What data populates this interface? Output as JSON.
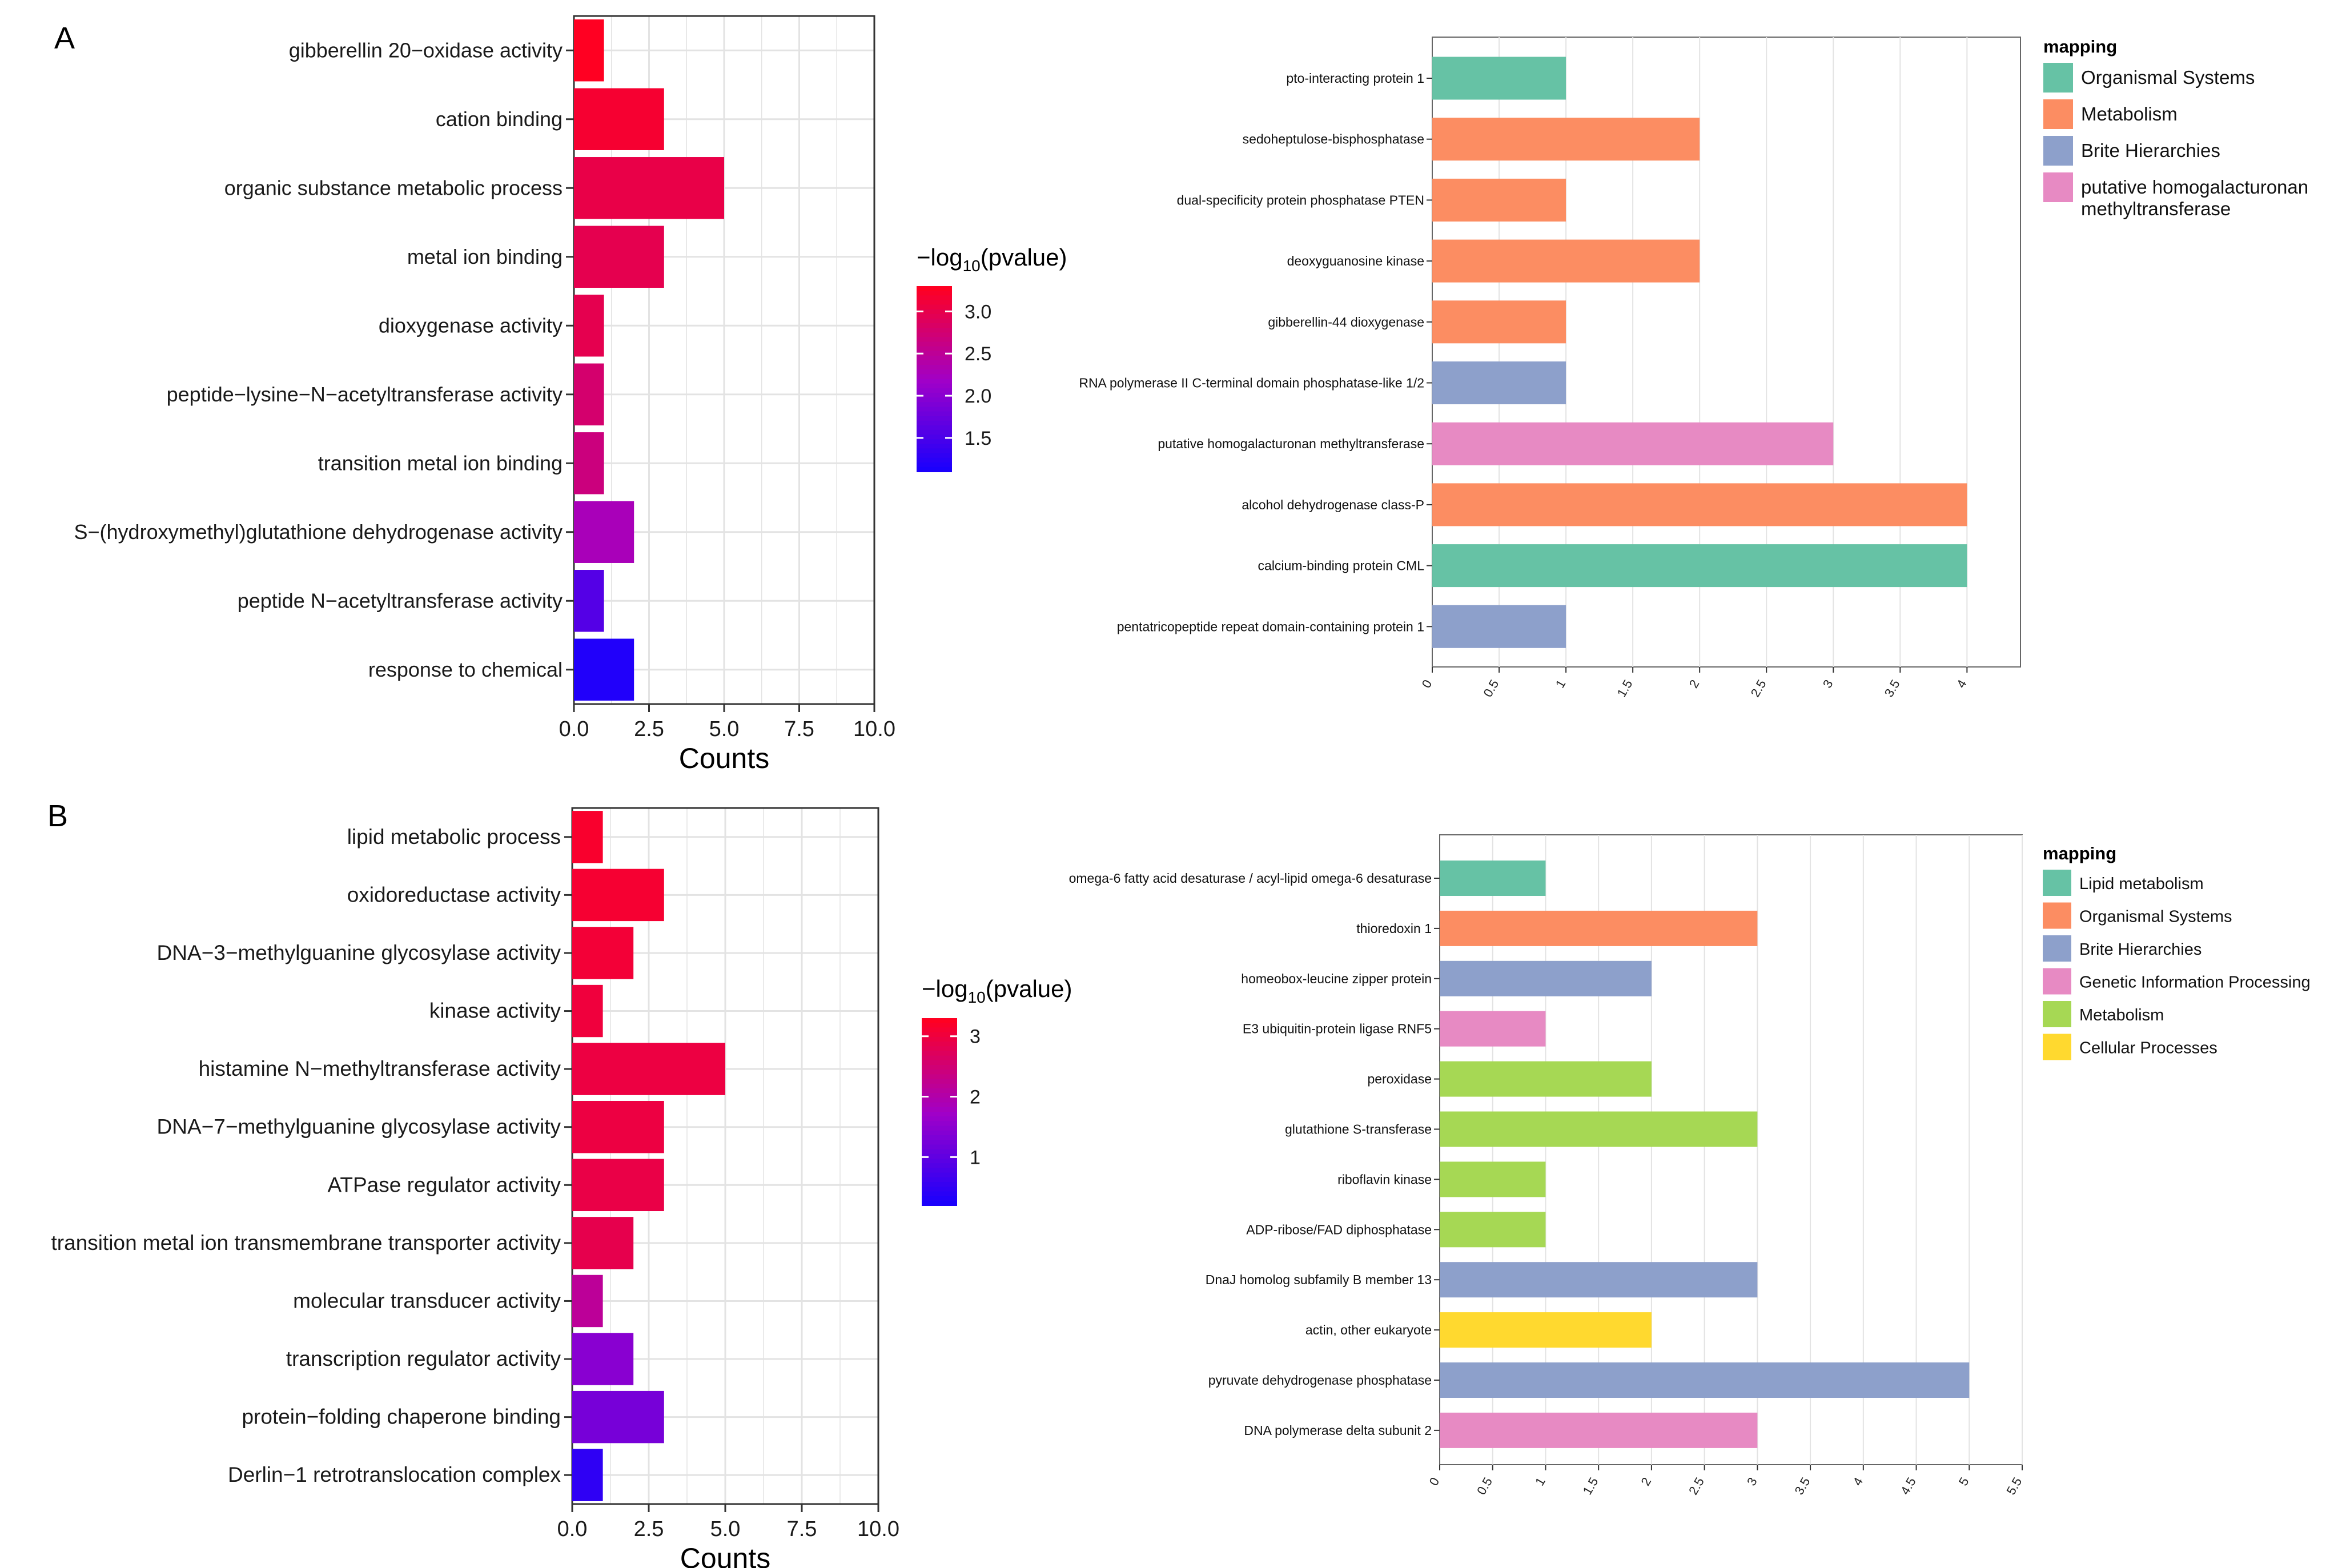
{
  "panels": {
    "a": "A",
    "b": "B"
  },
  "colors": {
    "low": "#1400ff",
    "mid": "#a000c8",
    "high": "#ff0022",
    "grid": "#e3e3e3",
    "frame": "#555555"
  },
  "chart_data": [
    {
      "id": "A-left",
      "type": "bar",
      "orientation": "horizontal",
      "title": "",
      "xlabel": "Counts",
      "ylabel": "",
      "xlim": [
        0,
        10
      ],
      "xticks": [
        0,
        2.5,
        5,
        7.5,
        10
      ],
      "xtick_labels": [
        "0.0",
        "2.5",
        "5.0",
        "7.5",
        "10.0"
      ],
      "categories": [
        "gibberellin 20−oxidase activity",
        "cation binding",
        "organic substance metabolic process",
        "metal ion binding",
        "dioxygenase activity",
        "peptide−lysine−N−acetyltransferase activity",
        "transition metal ion binding",
        "S−(hydroxymethyl)glutathione dehydrogenase activity",
        "peptide N−acetyltransferase activity",
        "response to chemical"
      ],
      "values": [
        1,
        3,
        5,
        3,
        1,
        1,
        1,
        2,
        1,
        2
      ],
      "neg_log10_pvalue": [
        3.3,
        3.2,
        3.05,
        3.0,
        3.0,
        2.8,
        2.7,
        2.3,
        1.6,
        1.2
      ],
      "legend": {
        "title_prefix": "−log",
        "title_sub": "10",
        "title_suffix": "(pvalue)",
        "range": [
          1.1,
          3.3
        ],
        "ticks": [
          3.0,
          2.5,
          2.0,
          1.5
        ],
        "tick_labels": [
          "3.0",
          "2.5",
          "2.0",
          "1.5"
        ]
      }
    },
    {
      "id": "A-right",
      "type": "bar",
      "orientation": "horizontal",
      "title": "",
      "xlabel": "",
      "ylabel": "",
      "xlim": [
        0,
        4.4
      ],
      "xticks": [
        0,
        0.5,
        1,
        1.5,
        2,
        2.5,
        3,
        3.5,
        4
      ],
      "xtick_labels": [
        "0",
        "0.5",
        "1",
        "1.5",
        "2",
        "2.5",
        "3",
        "3.5",
        "4"
      ],
      "categories": [
        "pto-interacting protein 1",
        "sedoheptulose-bisphosphatase",
        "dual-specificity protein phosphatase PTEN",
        "deoxyguanosine kinase",
        "gibberellin-44 dioxygenase",
        "RNA polymerase II C-terminal domain phosphatase-like 1/2",
        "putative homogalacturonan methyltransferase",
        "alcohol dehydrogenase class-P",
        "calcium-binding protein CML",
        "pentatricopeptide repeat domain-containing protein 1"
      ],
      "values": [
        1,
        2,
        1,
        2,
        1,
        1,
        3,
        4,
        4,
        1
      ],
      "groups": [
        0,
        1,
        1,
        1,
        1,
        2,
        3,
        1,
        0,
        2
      ],
      "legend": {
        "title": "mapping",
        "entries": [
          {
            "label": "Organismal Systems",
            "color": "#66c2a5"
          },
          {
            "label": "Metabolism",
            "color": "#fc8d62"
          },
          {
            "label": "Brite Hierarchies",
            "color": "#8da0cb"
          },
          {
            "label": "putative homogalacturonan",
            "label2": "methyltransferase",
            "color": "#e78ac3"
          }
        ]
      }
    },
    {
      "id": "B-left",
      "type": "bar",
      "orientation": "horizontal",
      "title": "",
      "xlabel": "Counts",
      "ylabel": "",
      "xlim": [
        0,
        10
      ],
      "xticks": [
        0,
        2.5,
        5,
        7.5,
        10
      ],
      "xtick_labels": [
        "0.0",
        "2.5",
        "5.0",
        "7.5",
        "10.0"
      ],
      "categories": [
        "lipid metabolic process",
        "oxidoreductase activity",
        "DNA−3−methylguanine glycosylase activity",
        "kinase activity",
        "histamine N−methyltransferase activity",
        "DNA−7−methylguanine glycosylase activity",
        "ATPase regulator activity",
        "transition metal ion transmembrane transporter activity",
        "molecular transducer activity",
        "transcription regulator activity",
        "protein−folding chaperone binding",
        "Derlin−1 retrotranslocation complex"
      ],
      "values": [
        1,
        3,
        2,
        1,
        5,
        3,
        3,
        2,
        1,
        2,
        3,
        1
      ],
      "neg_log10_pvalue": [
        3.2,
        3.15,
        3.1,
        3.05,
        3.0,
        3.0,
        2.95,
        2.9,
        2.2,
        1.5,
        1.3,
        0.5
      ],
      "legend": {
        "title_prefix": "−log",
        "title_sub": "10",
        "title_suffix": "(pvalue)",
        "range": [
          0.2,
          3.3
        ],
        "ticks": [
          3,
          2,
          1
        ],
        "tick_labels": [
          "3",
          "2",
          "1"
        ]
      }
    },
    {
      "id": "B-right",
      "type": "bar",
      "orientation": "horizontal",
      "title": "",
      "xlabel": "",
      "ylabel": "",
      "xlim": [
        0,
        5.5
      ],
      "xticks": [
        0,
        0.5,
        1,
        1.5,
        2,
        2.5,
        3,
        3.5,
        4,
        4.5,
        5,
        5.5
      ],
      "xtick_labels": [
        "0",
        "0.5",
        "1",
        "1.5",
        "2",
        "2.5",
        "3",
        "3.5",
        "4",
        "4.5",
        "5",
        "5.5"
      ],
      "categories": [
        "omega-6 fatty acid desaturase / acyl-lipid omega-6 desaturase",
        "thioredoxin 1",
        "homeobox-leucine zipper protein",
        "E3 ubiquitin-protein ligase RNF5",
        "peroxidase",
        "glutathione S-transferase",
        "riboflavin kinase",
        "ADP-ribose/FAD diphosphatase",
        "DnaJ homolog subfamily B member 13",
        "actin, other eukaryote",
        "pyruvate dehydrogenase phosphatase",
        "DNA polymerase delta subunit 2"
      ],
      "values": [
        1,
        3,
        2,
        1,
        2,
        3,
        1,
        1,
        3,
        2,
        5,
        3
      ],
      "groups": [
        0,
        1,
        2,
        3,
        4,
        4,
        4,
        4,
        2,
        5,
        2,
        3
      ],
      "legend": {
        "title": "mapping",
        "entries": [
          {
            "label": "Lipid metabolism",
            "color": "#66c2a5"
          },
          {
            "label": "Organismal Systems",
            "color": "#fc8d62"
          },
          {
            "label": "Brite Hierarchies",
            "color": "#8da0cb"
          },
          {
            "label": "Genetic Information Processing",
            "color": "#e78ac3"
          },
          {
            "label": "Metabolism",
            "color": "#a6d854"
          },
          {
            "label": "Cellular Processes",
            "color": "#ffd92f"
          }
        ]
      }
    }
  ]
}
